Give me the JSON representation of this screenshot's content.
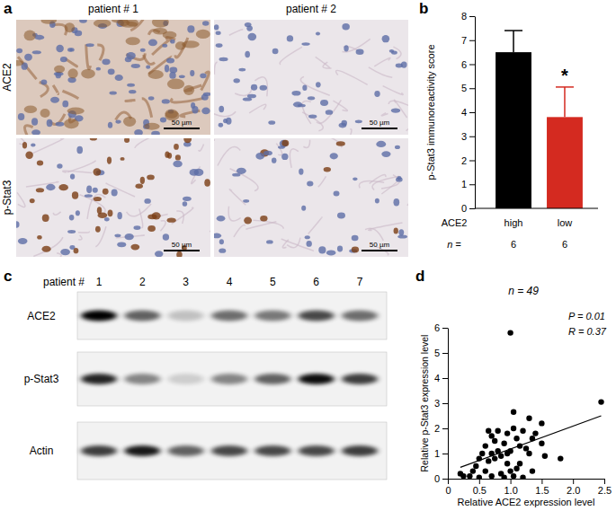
{
  "panel_labels": [
    "a",
    "b",
    "c",
    "d"
  ],
  "micrographs": {
    "columns": [
      "patient # 1",
      "patient # 2"
    ],
    "rows": [
      "ACE2",
      "p-Stat3"
    ],
    "scale_bar": "50 µm"
  },
  "blot": {
    "header": "patient #",
    "lanes": [
      1,
      2,
      3,
      4,
      5,
      6,
      7
    ],
    "rows": [
      {
        "label": "ACE2",
        "intensity": [
          1.0,
          0.6,
          0.2,
          0.55,
          0.5,
          0.7,
          0.55
        ]
      },
      {
        "label": "p-Stat3",
        "intensity": [
          0.85,
          0.45,
          0.15,
          0.45,
          0.6,
          0.95,
          0.75
        ]
      },
      {
        "label": "Actin",
        "intensity": [
          0.75,
          0.9,
          0.6,
          0.7,
          0.7,
          0.7,
          0.75
        ]
      }
    ]
  },
  "chart_data": [
    {
      "type": "bar",
      "y_label": "p-Stat3 immunoreactivity score",
      "x_label": "ACE2",
      "categories": [
        "high",
        "low"
      ],
      "values": [
        6.5,
        3.8
      ],
      "errors": [
        0.9,
        1.25
      ],
      "colors": [
        "#000000",
        "#d42a20"
      ],
      "ylim": [
        0,
        8
      ],
      "yticks": [
        0,
        1,
        2,
        3,
        4,
        5,
        6,
        7,
        8
      ],
      "n_label": "n =",
      "n": [
        6,
        6
      ],
      "significance": [
        null,
        "*"
      ]
    },
    {
      "type": "scatter",
      "title": "n = 49",
      "x_label": "Relative ACE2 expression level",
      "y_label": "Relative p-Stat3 expression level",
      "color": "#000000",
      "marker": "circle",
      "x": [
        0.2,
        0.25,
        0.35,
        0.4,
        0.45,
        0.5,
        0.5,
        0.55,
        0.6,
        0.6,
        0.65,
        0.65,
        0.7,
        0.7,
        0.7,
        0.75,
        0.75,
        0.8,
        0.8,
        0.85,
        0.85,
        0.9,
        0.9,
        0.95,
        0.95,
        0.95,
        1.0,
        1.0,
        1.0,
        1.05,
        1.05,
        1.05,
        1.1,
        1.1,
        1.15,
        1.15,
        1.2,
        1.2,
        1.25,
        1.3,
        1.3,
        1.35,
        1.35,
        1.4,
        1.5,
        1.5,
        1.55,
        1.8,
        2.45
      ],
      "values": [
        0.2,
        0.1,
        0.1,
        0.3,
        0.5,
        0.05,
        0.8,
        1.0,
        0.3,
        1.3,
        0.7,
        1.9,
        0.1,
        1.0,
        1.7,
        1.5,
        0.8,
        1.1,
        1.9,
        0.9,
        0.2,
        0.05,
        1.4,
        1.0,
        0.6,
        1.8,
        5.8,
        0.3,
        1.1,
        2.0,
        0.1,
        2.65,
        0.4,
        1.6,
        1.3,
        0.6,
        1.9,
        0.05,
        1.2,
        2.4,
        1.0,
        1.6,
        0.3,
        1.8,
        1.4,
        2.2,
        0.9,
        0.8,
        3.05
      ],
      "xlim": [
        0,
        2.5
      ],
      "xticks": [
        0,
        0.5,
        {
          "value": 1,
          "label": "1.0"
        },
        1.5,
        {
          "value": 2,
          "label": "2.0"
        },
        2.5
      ],
      "ylim": [
        0,
        6
      ],
      "yticks": [
        0,
        1,
        2,
        3,
        4,
        5,
        6
      ],
      "trend_line": {
        "x": [
          0.2,
          2.45
        ],
        "y": [
          0.45,
          2.5
        ]
      },
      "annotations": [
        "P = 0.01",
        "R = 0.37"
      ]
    }
  ]
}
